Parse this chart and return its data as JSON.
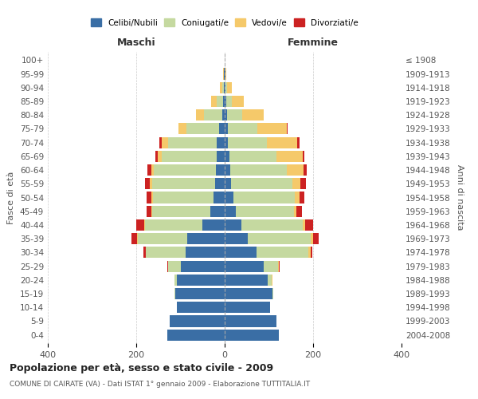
{
  "age_groups": [
    "100+",
    "95-99",
    "90-94",
    "85-89",
    "80-84",
    "75-79",
    "70-74",
    "65-69",
    "60-64",
    "55-59",
    "50-54",
    "45-49",
    "40-44",
    "35-39",
    "30-34",
    "25-29",
    "20-24",
    "15-19",
    "10-14",
    "5-9",
    "0-4"
  ],
  "birth_years": [
    "≤ 1908",
    "1909-1913",
    "1914-1918",
    "1919-1923",
    "1924-1928",
    "1929-1933",
    "1934-1938",
    "1939-1943",
    "1944-1948",
    "1949-1953",
    "1954-1958",
    "1959-1963",
    "1964-1968",
    "1969-1973",
    "1974-1978",
    "1979-1983",
    "1984-1988",
    "1989-1993",
    "1994-1998",
    "1999-2003",
    "2004-2008"
  ],
  "maschi": {
    "celibi": [
      0,
      1,
      2,
      3,
      5,
      12,
      18,
      18,
      20,
      22,
      25,
      32,
      50,
      85,
      88,
      100,
      108,
      112,
      108,
      125,
      130
    ],
    "coniugati": [
      0,
      1,
      4,
      15,
      42,
      75,
      110,
      125,
      140,
      142,
      138,
      132,
      130,
      112,
      90,
      28,
      6,
      2,
      0,
      0,
      0
    ],
    "vedovi": [
      0,
      1,
      5,
      12,
      18,
      18,
      14,
      8,
      6,
      5,
      3,
      2,
      2,
      2,
      1,
      0,
      0,
      0,
      0,
      0,
      0
    ],
    "divorziati": [
      0,
      0,
      0,
      0,
      0,
      0,
      5,
      5,
      8,
      12,
      10,
      10,
      18,
      12,
      5,
      2,
      0,
      0,
      0,
      0,
      0
    ]
  },
  "femmine": {
    "nubili": [
      0,
      1,
      2,
      4,
      5,
      8,
      8,
      10,
      12,
      15,
      20,
      25,
      38,
      52,
      72,
      88,
      98,
      108,
      102,
      118,
      122
    ],
    "coniugate": [
      0,
      0,
      4,
      12,
      35,
      65,
      88,
      108,
      128,
      138,
      138,
      132,
      138,
      142,
      118,
      32,
      8,
      2,
      0,
      0,
      0
    ],
    "vedove": [
      0,
      2,
      10,
      28,
      48,
      68,
      68,
      58,
      38,
      18,
      12,
      6,
      6,
      6,
      4,
      2,
      2,
      0,
      0,
      0,
      0
    ],
    "divorziate": [
      0,
      0,
      0,
      0,
      0,
      2,
      5,
      5,
      8,
      12,
      10,
      12,
      18,
      12,
      5,
      2,
      0,
      0,
      0,
      0,
      0
    ]
  },
  "colors": {
    "celibi": "#3a6ea5",
    "coniugati": "#c5d9a0",
    "vedovi": "#f5c96a",
    "divorziati": "#cc2222"
  },
  "title": "Popolazione per età, sesso e stato civile - 2009",
  "subtitle": "COMUNE DI CAIRATE (VA) - Dati ISTAT 1° gennaio 2009 - Elaborazione TUTTITALIA.IT",
  "ylabel_left": "Fasce di età",
  "ylabel_right": "Anni di nascita",
  "xlabel_left": "Maschi",
  "xlabel_right": "Femmine",
  "xlim": 400,
  "legend_labels": [
    "Celibi/Nubili",
    "Coniugati/e",
    "Vedovi/e",
    "Divorziati/e"
  ],
  "background_color": "#ffffff"
}
